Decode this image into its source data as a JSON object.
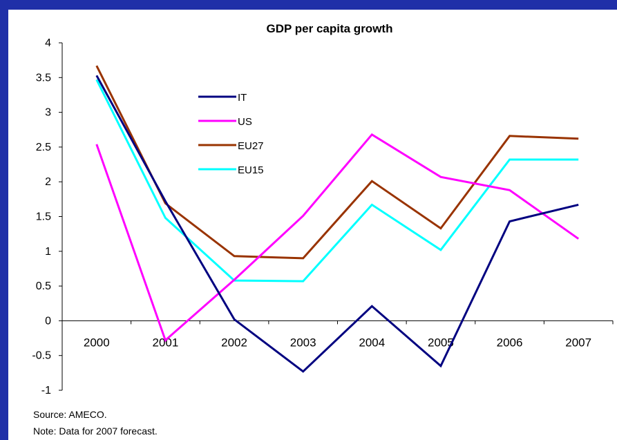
{
  "chart_data": {
    "type": "line",
    "title": "GDP per capita growth",
    "xlabel": "",
    "ylabel": "",
    "categories": [
      "2000",
      "2001",
      "2002",
      "2003",
      "2004",
      "2005",
      "2006",
      "2007"
    ],
    "ylim": [
      -1,
      4
    ],
    "yticks": [
      "4",
      "3.5",
      "3",
      "2.5",
      "2",
      "1.5",
      "1",
      "0.5",
      "0",
      "-0.5",
      "-1"
    ],
    "ytick_values": [
      4,
      3.5,
      3,
      2.5,
      2,
      1.5,
      1,
      0.5,
      0,
      -0.5,
      -1
    ],
    "grid": false,
    "legend_position": "top-left inside",
    "series": [
      {
        "name": "IT",
        "color": "#000080",
        "values": [
          3.53,
          1.72,
          0.02,
          -0.73,
          0.21,
          -0.65,
          1.43,
          1.67
        ]
      },
      {
        "name": "US",
        "color": "#ff00ff",
        "values": [
          2.54,
          -0.28,
          0.59,
          1.51,
          2.68,
          2.07,
          1.88,
          1.18
        ]
      },
      {
        "name": "EU27",
        "color": "#993300",
        "values": [
          3.67,
          1.69,
          0.93,
          0.9,
          2.01,
          1.33,
          2.66,
          2.62
        ]
      },
      {
        "name": "EU15",
        "color": "#00ffff",
        "values": [
          3.47,
          1.48,
          0.58,
          0.57,
          1.67,
          1.02,
          2.32,
          2.32
        ]
      }
    ]
  },
  "footer": {
    "source": "Source: AMECO.",
    "note": "Note: Data for 2007 forecast."
  }
}
